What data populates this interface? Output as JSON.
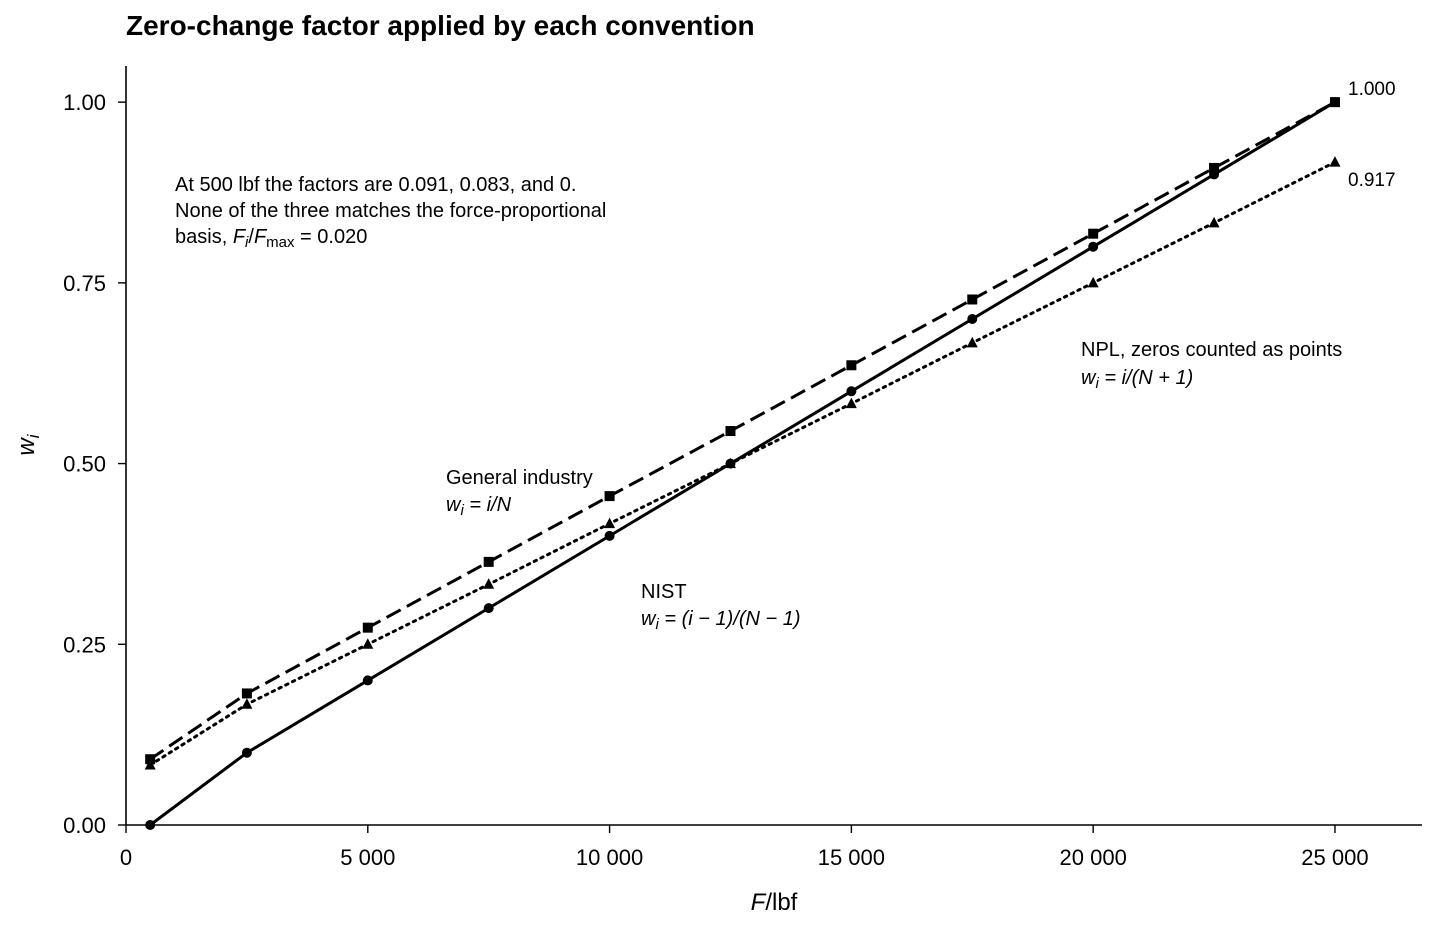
{
  "chart_data": {
    "type": "line",
    "title": "Zero-change factor applied by each convention",
    "xlabel": {
      "italic": "F",
      "rest": "/lbf"
    },
    "ylabel": {
      "base": "w",
      "sub": "i"
    },
    "xlim": [
      0,
      26800
    ],
    "ylim": [
      0,
      1.05
    ],
    "x_ticks": [
      0,
      5000,
      10000,
      15000,
      20000,
      25000
    ],
    "x_tick_labels": [
      "0",
      "5 000",
      "10 000",
      "15 000",
      "20 000",
      "25 000"
    ],
    "y_ticks": [
      0,
      0.25,
      0.5,
      0.75,
      1.0
    ],
    "y_tick_labels": [
      "0.00",
      "0.25",
      "0.50",
      "0.75",
      "1.00"
    ],
    "grid": false,
    "x": [
      500,
      2500,
      5000,
      7500,
      10000,
      12500,
      15000,
      17500,
      20000,
      22500,
      25000
    ],
    "series": [
      {
        "name": "General industry",
        "formula": "w_i = i/N",
        "style": "dashed",
        "marker": "square",
        "values": [
          0.091,
          0.182,
          0.273,
          0.364,
          0.455,
          0.545,
          0.636,
          0.727,
          0.818,
          0.909,
          1.0
        ]
      },
      {
        "name": "NPL, zeros counted as points",
        "formula": "w_i = i/(N + 1)",
        "style": "dotted",
        "marker": "triangle",
        "values": [
          0.083,
          0.167,
          0.25,
          0.333,
          0.417,
          0.5,
          0.583,
          0.667,
          0.75,
          0.833,
          0.917
        ]
      },
      {
        "name": "NIST",
        "formula": "w_i = (i − 1)/(N − 1)",
        "style": "solid",
        "marker": "circle",
        "values": [
          0.0,
          0.1,
          0.2,
          0.3,
          0.4,
          0.5,
          0.6,
          0.7,
          0.8,
          0.9,
          1.0
        ]
      }
    ],
    "end_labels": [
      "1.000",
      "0.917"
    ],
    "note": {
      "line1": "At 500 lbf the factors are 0.091, 0.083, and 0.",
      "line2": "None of the three matches the force-proportional",
      "line3_prefix": "basis, ",
      "line3_fi": "F",
      "line3_fi_sub": "i",
      "line3_slash": "/",
      "line3_fmax": "F",
      "line3_fmax_sub": "max",
      "line3_suffix": " = 0.020"
    },
    "series_labels": {
      "general_name": "General industry",
      "general_formula": {
        "w": "w",
        "sub": "i",
        "rest": " = i/N"
      },
      "npl_name": "NPL, zeros counted as points",
      "npl_formula": {
        "w": "w",
        "sub": "i",
        "rest": " = i/(N + 1)"
      },
      "nist_name": "NIST",
      "nist_formula": {
        "w": "w",
        "sub": "i",
        "rest": " = (i − 1)/(N − 1)"
      }
    }
  }
}
